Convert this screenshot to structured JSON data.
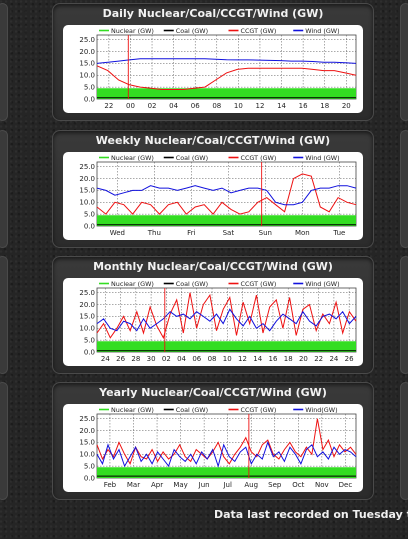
{
  "footer_text": "Data last recorded on Tuesday th",
  "colors": {
    "nuclear": "#33dd22",
    "coal": "#000000",
    "ccgt": "#ee1111",
    "wind": "#1111dd"
  },
  "chart_data": [
    {
      "type": "line",
      "title": "Daily Nuclear/Coal/CCGT/Wind (GW)",
      "legend": [
        "Nuclear (GW)",
        "Coal (GW)",
        "CCGT (GW)",
        "Wind (GW)"
      ],
      "yticks": [
        "25.0",
        "20.0",
        "15.0",
        "10.0",
        "5.0",
        "0.0"
      ],
      "ylim": [
        0,
        27
      ],
      "xticks": [
        "22",
        "00",
        "02",
        "04",
        "06",
        "08",
        "10",
        "12",
        "14",
        "16",
        "18",
        "20"
      ],
      "marker_label": "00",
      "series": [
        {
          "name": "Nuclear (GW)",
          "values": [
            4.5,
            4.5,
            4.5,
            4.5,
            4.5,
            4.5,
            4.5,
            4.5,
            4.5,
            4.5,
            4.5,
            4.5,
            4.5,
            4.5,
            4.5,
            4.5,
            4.5,
            4.5,
            4.5,
            4.5,
            4.5,
            4.5,
            4.5,
            4.5,
            4.5
          ]
        },
        {
          "name": "Coal (GW)",
          "values": [
            0.5,
            0.5,
            0.5,
            0.5,
            0.5,
            0.5,
            0.5,
            0.5,
            0.5,
            0.5,
            0.5,
            0.5,
            0.5,
            0.5,
            0.5,
            0.5,
            0.5,
            0.5,
            0.5,
            0.5,
            0.5,
            0.5,
            0.5,
            0.5,
            0.5
          ]
        },
        {
          "name": "CCGT (GW)",
          "values": [
            14,
            12,
            8,
            6,
            5,
            4.5,
            4,
            4,
            4,
            4.5,
            5,
            8,
            11,
            12.5,
            13,
            13,
            13,
            13,
            13,
            13,
            12.5,
            12,
            12,
            11,
            10
          ]
        },
        {
          "name": "Wind (GW)",
          "values": [
            15,
            15.5,
            16,
            16.5,
            17,
            17,
            17,
            17,
            17,
            17,
            17,
            16.8,
            16.6,
            16.5,
            16.5,
            16.4,
            16.3,
            16.2,
            16,
            16,
            15.8,
            15.5,
            15.5,
            15.3,
            15
          ]
        }
      ]
    },
    {
      "type": "line",
      "title": "Weekly Nuclear/Coal/CCGT/Wind (GW)",
      "legend": [
        "Nuclear (GW)",
        "Coal (GW)",
        "CCGT (GW)",
        "Wind (GW)"
      ],
      "yticks": [
        "25.0",
        "20.0",
        "15.0",
        "10.0",
        "5.0",
        "0.0"
      ],
      "ylim": [
        0,
        27
      ],
      "xticks": [
        "Wed",
        "Thu",
        "Fri",
        "Sat",
        "Sun",
        "Mon",
        "Tue"
      ],
      "marker_label": "Sun",
      "series": [
        {
          "name": "Nuclear (GW)",
          "values": [
            4.5,
            4.5,
            4.5,
            4.5,
            4.5,
            4.5,
            4.5,
            4.5,
            4.5,
            4.5,
            4.5,
            4.5,
            4.5,
            4.5,
            4.5,
            4.5,
            4.5,
            4.5,
            4.5,
            4.5,
            4.5,
            4.5,
            4.5,
            4.5,
            4.5,
            4.5,
            4.5,
            4.5,
            4.5,
            4.5
          ]
        },
        {
          "name": "Coal (GW)",
          "values": [
            0.5,
            0.5,
            0.5,
            0.5,
            0.5,
            0.5,
            0.5,
            0.5,
            0.5,
            0.5,
            0.5,
            0.5,
            0.5,
            0.5,
            0.5,
            0.5,
            0.5,
            0.5,
            0.5,
            0.5,
            0.5,
            0.5,
            0.5,
            0.5,
            0.5,
            0.5,
            0.5,
            0.5,
            0.5,
            0.5
          ]
        },
        {
          "name": "CCGT (GW)",
          "values": [
            8,
            5,
            10,
            9,
            5,
            10,
            9,
            5,
            9,
            10,
            5,
            8,
            9,
            5,
            10,
            7,
            5,
            6,
            10,
            12,
            9,
            6,
            20,
            22,
            21,
            8,
            6,
            12,
            10,
            9
          ]
        },
        {
          "name": "Wind (GW)",
          "values": [
            16,
            15,
            13,
            14,
            15,
            15,
            17,
            16,
            16,
            15,
            16,
            17,
            16,
            15,
            16,
            14,
            15,
            16,
            16,
            15,
            10,
            9,
            9,
            10,
            15,
            16,
            16,
            17,
            17,
            16
          ]
        }
      ]
    },
    {
      "type": "line",
      "title": "Monthly Nuclear/Coal/CCGT/Wind (GW)",
      "legend": [
        "Nuclear (GW)",
        "Coal (GW)",
        "CCGT (GW)",
        "Wind (GW)"
      ],
      "yticks": [
        "25.0",
        "20.0",
        "15.0",
        "10.0",
        "5.0",
        "0.0"
      ],
      "ylim": [
        0,
        27
      ],
      "xticks": [
        "24",
        "26",
        "28",
        "30",
        "02",
        "04",
        "06",
        "08",
        "10",
        "12",
        "14",
        "16",
        "18",
        "20",
        "22",
        "24",
        "26"
      ],
      "marker_label": "02",
      "series": [
        {
          "name": "Nuclear (GW)",
          "values": [
            4.5,
            4.5,
            4.5,
            4.5,
            4.5,
            4.5,
            4.5,
            4.5,
            4.5,
            4.5,
            4.5,
            4.5,
            4.5,
            4.5,
            4.5,
            4.5,
            4.5,
            4.5,
            4.5,
            4.5,
            4.5,
            4.5,
            4.5,
            4.5,
            4.5,
            4.5,
            4.5,
            4.5,
            4.5,
            4.5,
            4.5,
            4.5,
            4.5,
            4.5,
            4.5,
            4.5,
            4.5,
            4.5,
            4.5,
            4.5
          ]
        },
        {
          "name": "Coal (GW)",
          "values": [
            0.5,
            0.5,
            0.5,
            0.5,
            0.5,
            0.5,
            0.5,
            0.5,
            0.5,
            0.5,
            0.5,
            0.5,
            0.5,
            0.5,
            0.5,
            0.5,
            0.5,
            0.5,
            0.5,
            0.5,
            0.5,
            0.5,
            0.5,
            0.5,
            0.5,
            0.5,
            0.5,
            0.5,
            0.5,
            0.5,
            0.5,
            0.5,
            0.5,
            0.5,
            0.5,
            0.5,
            0.5,
            0.5,
            0.5,
            0.5
          ]
        },
        {
          "name": "CCGT (GW)",
          "values": [
            8,
            12,
            6,
            10,
            15,
            9,
            17,
            8,
            19,
            11,
            6,
            16,
            22,
            8,
            25,
            10,
            20,
            24,
            9,
            18,
            23,
            7,
            21,
            12,
            24,
            8,
            19,
            22,
            10,
            23,
            7,
            18,
            20,
            9,
            16,
            12,
            21,
            8,
            17,
            13
          ]
        },
        {
          "name": "Wind (GW)",
          "values": [
            12,
            14,
            10,
            9,
            13,
            12,
            9,
            14,
            10,
            12,
            14,
            17,
            15,
            16,
            14,
            17,
            15,
            13,
            16,
            12,
            18,
            14,
            11,
            15,
            10,
            12,
            9,
            13,
            16,
            14,
            12,
            17,
            13,
            11,
            15,
            16,
            14,
            17,
            12,
            15
          ]
        }
      ]
    },
    {
      "type": "line",
      "title": "Yearly Nuclear/Coal/CCGT/Wind (GW)",
      "legend": [
        "Nuclear (GW)",
        "Coal (GW)",
        "CCGT (GW)",
        "Wind(GW)"
      ],
      "yticks": [
        "25.0",
        "20.0",
        "15.0",
        "10.0",
        "5.0",
        "0.0"
      ],
      "ylim": [
        0,
        27
      ],
      "xticks": [
        "Feb",
        "Mar",
        "Apr",
        "May",
        "Jun",
        "Jul",
        "Aug",
        "Sep",
        "Oct",
        "Nov",
        "Dec"
      ],
      "marker_label": "Aug",
      "series": [
        {
          "name": "Nuclear (GW)",
          "values": [
            4.5,
            4.5,
            4.5,
            4.5,
            4.5,
            4.5,
            4.5,
            4.5,
            4.5,
            4.5,
            4.5,
            4.5,
            4.5,
            4.5,
            4.5,
            4.5,
            4.5,
            4.5,
            4.5,
            4.5,
            4.5,
            4.5,
            4.5,
            4.5,
            4.5,
            4.5,
            4.5,
            4.5,
            4.5,
            4.5,
            4.5,
            4.5,
            4.5,
            4.5,
            4.5,
            4.5,
            4.5,
            4.5,
            4.5,
            4.5,
            4.5,
            4.5,
            4.5,
            4.5,
            4.5,
            4.5,
            4.5,
            4.5
          ]
        },
        {
          "name": "Coal (GW)",
          "values": [
            0.8,
            0.8,
            0.8,
            0.8,
            0.8,
            0.8,
            0.8,
            0.8,
            0.8,
            0.8,
            0.8,
            0.8,
            0.8,
            0.8,
            0.8,
            0.8,
            0.8,
            0.8,
            0.8,
            0.8,
            0.8,
            0.8,
            0.8,
            0.8,
            0.8,
            0.8,
            0.8,
            0.8,
            0.8,
            0.8,
            0.8,
            0.8,
            0.8,
            0.8,
            0.8,
            0.8,
            0.8,
            0.8,
            0.8,
            0.8,
            0.8,
            0.8,
            0.8,
            0.8,
            0.8,
            0.8,
            0.8,
            0.8
          ]
        },
        {
          "name": "CCGT (GW)",
          "values": [
            14,
            8,
            12,
            9,
            15,
            10,
            6,
            13,
            9,
            8,
            12,
            7,
            11,
            8,
            10,
            14,
            9,
            7,
            12,
            10,
            8,
            11,
            15,
            9,
            6,
            10,
            13,
            17,
            11,
            9,
            14,
            16,
            10,
            8,
            12,
            15,
            11,
            9,
            13,
            10,
            25,
            12,
            16,
            9,
            14,
            11,
            13,
            10
          ]
        },
        {
          "name": "Wind (GW)",
          "values": [
            10,
            6,
            14,
            8,
            12,
            5,
            9,
            13,
            7,
            10,
            6,
            11,
            8,
            5,
            12,
            9,
            7,
            10,
            6,
            11,
            8,
            12,
            5,
            14,
            9,
            7,
            11,
            13,
            6,
            10,
            8,
            15,
            9,
            11,
            7,
            13,
            10,
            6,
            12,
            14,
            9,
            11,
            8,
            13,
            10,
            12,
            11,
            9
          ]
        }
      ]
    }
  ]
}
